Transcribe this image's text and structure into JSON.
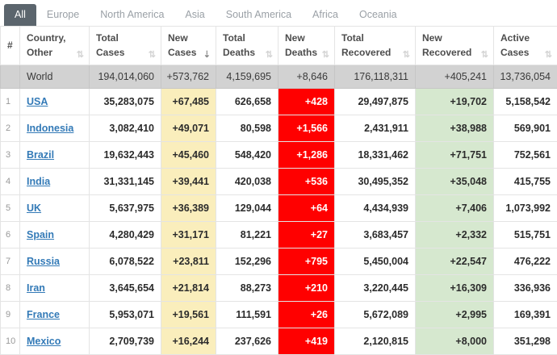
{
  "tabs": [
    {
      "label": "All",
      "active": true
    },
    {
      "label": "Europe",
      "active": false
    },
    {
      "label": "North America",
      "active": false
    },
    {
      "label": "Asia",
      "active": false
    },
    {
      "label": "South America",
      "active": false
    },
    {
      "label": "Africa",
      "active": false
    },
    {
      "label": "Oceania",
      "active": false
    }
  ],
  "colors": {
    "link_color": "#337ab7",
    "tab_active_bg": "#5b656d",
    "new_cases_bg": "#faeebc",
    "new_deaths_bg": "#ff0000",
    "new_recovered_bg": "#d6e8cf",
    "world_row_bg": "#d2d2d2"
  },
  "table": {
    "columns": [
      {
        "label": "#",
        "sortable": false,
        "sorted": false
      },
      {
        "label": "Country, Other",
        "sortable": true,
        "sorted": false
      },
      {
        "label": "Total Cases",
        "sortable": true,
        "sorted": false
      },
      {
        "label": "New Cases",
        "sortable": true,
        "sorted": true
      },
      {
        "label": "Total Deaths",
        "sortable": true,
        "sorted": false
      },
      {
        "label": "New Deaths",
        "sortable": true,
        "sorted": false
      },
      {
        "label": "Total Recovered",
        "sortable": true,
        "sorted": false
      },
      {
        "label": "New Recovered",
        "sortable": true,
        "sorted": false
      },
      {
        "label": "Active Cases",
        "sortable": true,
        "sorted": false
      }
    ],
    "world_row": {
      "country": "World",
      "total_cases": "194,014,060",
      "new_cases": "+573,762",
      "total_deaths": "4,159,695",
      "new_deaths": "+8,646",
      "total_recovered": "176,118,311",
      "new_recovered": "+405,241",
      "active_cases": "13,736,054"
    },
    "rows": [
      {
        "rank": "1",
        "country": "USA",
        "total_cases": "35,283,075",
        "new_cases": "+67,485",
        "total_deaths": "626,658",
        "new_deaths": "+428",
        "total_recovered": "29,497,875",
        "new_recovered": "+19,702",
        "active_cases": "5,158,542"
      },
      {
        "rank": "2",
        "country": "Indonesia",
        "total_cases": "3,082,410",
        "new_cases": "+49,071",
        "total_deaths": "80,598",
        "new_deaths": "+1,566",
        "total_recovered": "2,431,911",
        "new_recovered": "+38,988",
        "active_cases": "569,901"
      },
      {
        "rank": "3",
        "country": "Brazil",
        "total_cases": "19,632,443",
        "new_cases": "+45,460",
        "total_deaths": "548,420",
        "new_deaths": "+1,286",
        "total_recovered": "18,331,462",
        "new_recovered": "+71,751",
        "active_cases": "752,561"
      },
      {
        "rank": "4",
        "country": "India",
        "total_cases": "31,331,145",
        "new_cases": "+39,441",
        "total_deaths": "420,038",
        "new_deaths": "+536",
        "total_recovered": "30,495,352",
        "new_recovered": "+35,048",
        "active_cases": "415,755"
      },
      {
        "rank": "5",
        "country": "UK",
        "total_cases": "5,637,975",
        "new_cases": "+36,389",
        "total_deaths": "129,044",
        "new_deaths": "+64",
        "total_recovered": "4,434,939",
        "new_recovered": "+7,406",
        "active_cases": "1,073,992"
      },
      {
        "rank": "6",
        "country": "Spain",
        "total_cases": "4,280,429",
        "new_cases": "+31,171",
        "total_deaths": "81,221",
        "new_deaths": "+27",
        "total_recovered": "3,683,457",
        "new_recovered": "+2,332",
        "active_cases": "515,751"
      },
      {
        "rank": "7",
        "country": "Russia",
        "total_cases": "6,078,522",
        "new_cases": "+23,811",
        "total_deaths": "152,296",
        "new_deaths": "+795",
        "total_recovered": "5,450,004",
        "new_recovered": "+22,547",
        "active_cases": "476,222"
      },
      {
        "rank": "8",
        "country": "Iran",
        "total_cases": "3,645,654",
        "new_cases": "+21,814",
        "total_deaths": "88,273",
        "new_deaths": "+210",
        "total_recovered": "3,220,445",
        "new_recovered": "+16,309",
        "active_cases": "336,936"
      },
      {
        "rank": "9",
        "country": "France",
        "total_cases": "5,953,071",
        "new_cases": "+19,561",
        "total_deaths": "111,591",
        "new_deaths": "+26",
        "total_recovered": "5,672,089",
        "new_recovered": "+2,995",
        "active_cases": "169,391"
      },
      {
        "rank": "10",
        "country": "Mexico",
        "total_cases": "2,709,739",
        "new_cases": "+16,244",
        "total_deaths": "237,626",
        "new_deaths": "+419",
        "total_recovered": "2,120,815",
        "new_recovered": "+8,000",
        "active_cases": "351,298"
      }
    ]
  },
  "icons": {
    "sort_unsorted": "⇅",
    "sort_desc": "⇣"
  }
}
